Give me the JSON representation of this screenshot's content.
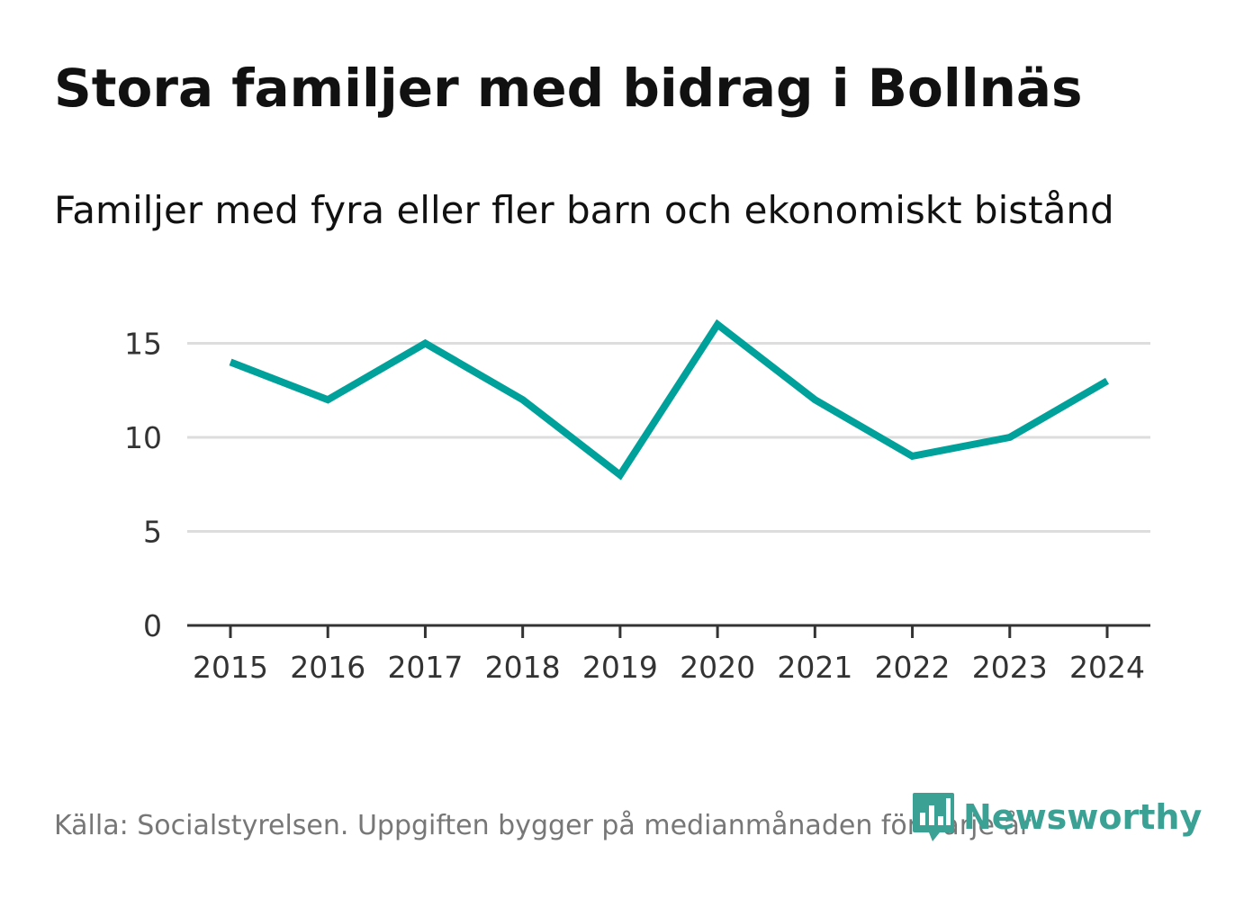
{
  "title": "Stora familjer med bidrag i Bollnäs",
  "subtitle": "Familjer med fyra eller fler barn och ekonomiskt bistånd",
  "source": "Källa: Socialstyrelsen. Uppgiften bygger på medianmånaden för varje år",
  "brand": {
    "name": "Newsworthy",
    "icon": "newsworthy-logo-icon",
    "color": "#3ba195"
  },
  "colors": {
    "line": "#00a19a",
    "grid": "#dddddd",
    "axis": "#333333"
  },
  "chart_data": {
    "type": "line",
    "title": "Stora familjer med bidrag i Bollnäs",
    "subtitle": "Familjer med fyra eller fler barn och ekonomiskt bistånd",
    "xlabel": "",
    "ylabel": "",
    "categories": [
      "2015",
      "2016",
      "2017",
      "2018",
      "2019",
      "2020",
      "2021",
      "2022",
      "2023",
      "2024"
    ],
    "series": [
      {
        "values": [
          14,
          12,
          15,
          12,
          8,
          16,
          12,
          9,
          10,
          13
        ]
      }
    ],
    "ylim": [
      0,
      15
    ],
    "yticks": [
      0,
      5,
      10,
      15
    ],
    "grid": true,
    "legend": "none"
  }
}
